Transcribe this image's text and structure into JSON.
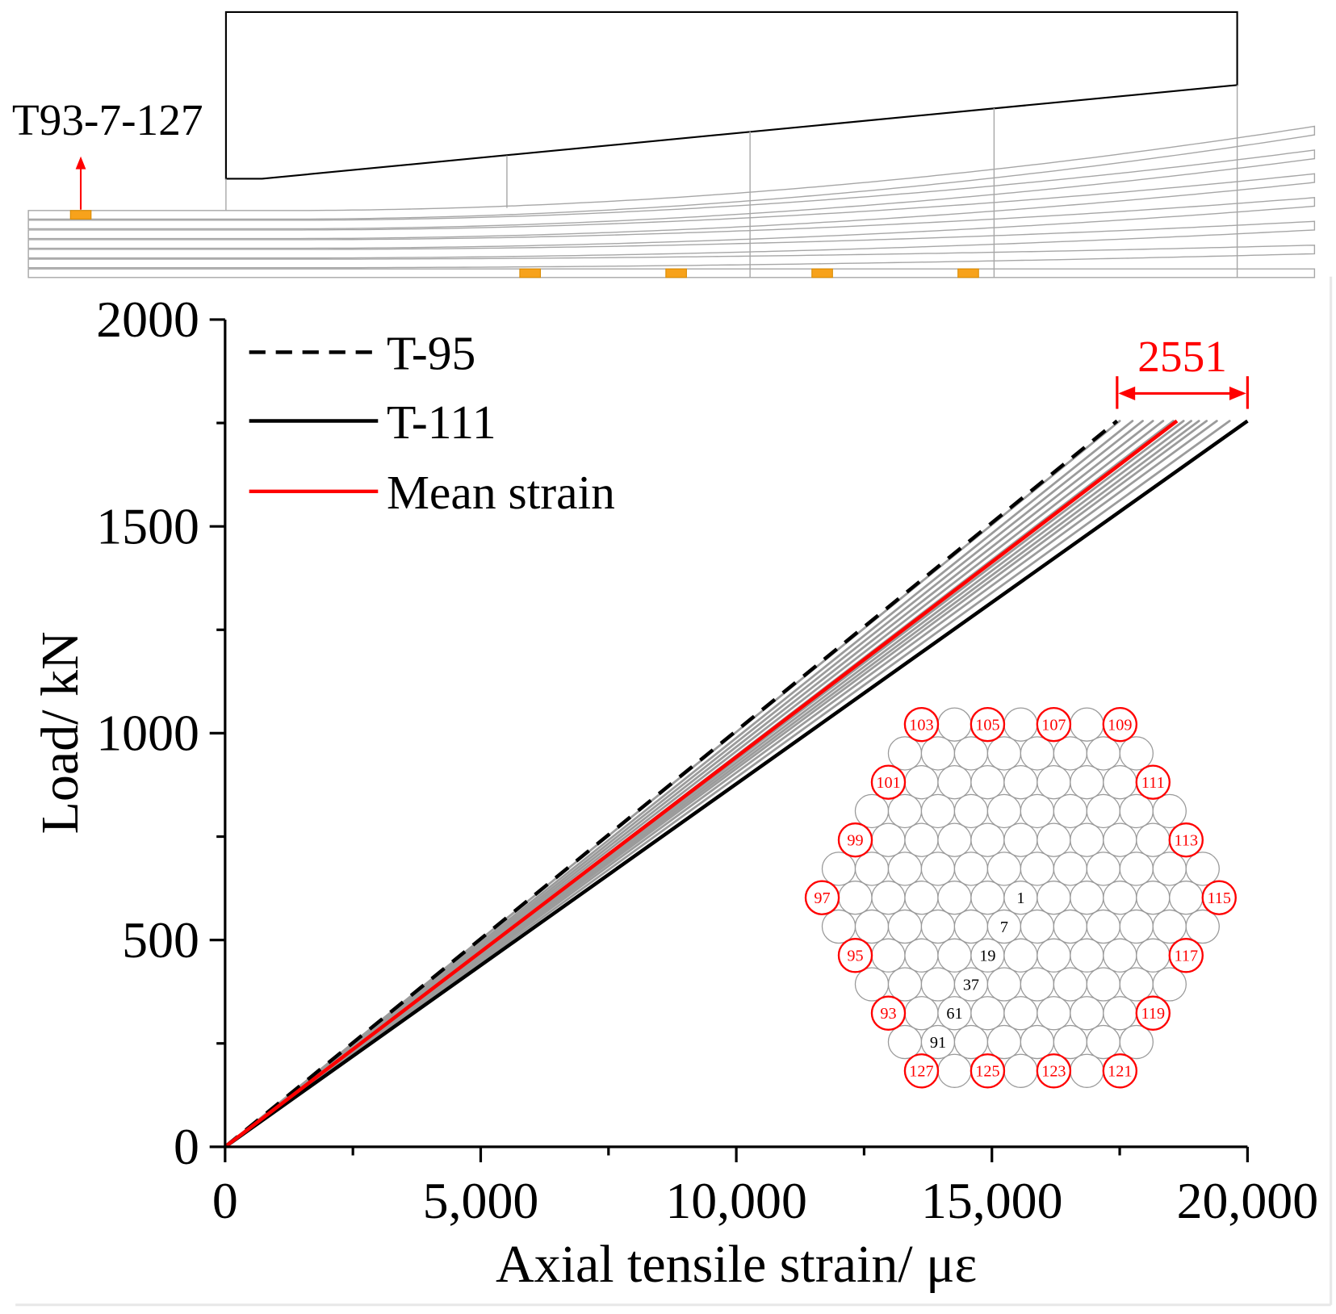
{
  "diagram": {
    "label": "T93-7-127",
    "sensor_color": "#f7a21b",
    "arrow_color": "#ff0000"
  },
  "chart_data": {
    "type": "line",
    "title": "",
    "xlabel": "Axial tensile strain/ με",
    "ylabel": "Load/ kN",
    "xlim": [
      0,
      20000
    ],
    "ylim": [
      0,
      2000
    ],
    "xticks": [
      0,
      5000,
      10000,
      15000,
      20000
    ],
    "xtick_labels": [
      "0",
      "5,000",
      "10,000",
      "15,000",
      "20,000"
    ],
    "yticks": [
      0,
      500,
      1000,
      1500,
      2000
    ],
    "ytick_labels": [
      "0",
      "500",
      "1000",
      "1500",
      "2000"
    ],
    "grid": false,
    "legend_position": "top-left",
    "series": [
      {
        "name": "T-95",
        "dashed": true,
        "color": "#000000",
        "x": [
          0,
          17449
        ],
        "y": [
          0,
          1755
        ]
      },
      {
        "name": "T-111",
        "dashed": false,
        "color": "#000000",
        "x": [
          0,
          20000
        ],
        "y": [
          0,
          1755
        ]
      },
      {
        "name": "Mean strain",
        "dashed": false,
        "color": "#ff0000",
        "x": [
          0,
          18620
        ],
        "y": [
          0,
          1755
        ]
      }
    ],
    "other_strands": {
      "color": "#9b9b9b",
      "end_load": 1755,
      "end_strain": [
        17500,
        17750,
        17950,
        18150,
        18350,
        18550,
        18750,
        18900,
        19050,
        19200,
        19400,
        19650
      ]
    },
    "annotation": {
      "text": "2551",
      "color": "#ff0000",
      "from_strain": 17449,
      "to_strain": 20000
    }
  },
  "inset": {
    "wire_count": 127,
    "highlight_color": "#ff0000",
    "red_labels": [
      "93",
      "95",
      "97",
      "99",
      "101",
      "103",
      "105",
      "107",
      "109",
      "111",
      "113",
      "115",
      "117",
      "119",
      "121",
      "123",
      "125",
      "127"
    ],
    "black_labels": [
      "1",
      "7",
      "19",
      "37",
      "61",
      "91"
    ]
  }
}
